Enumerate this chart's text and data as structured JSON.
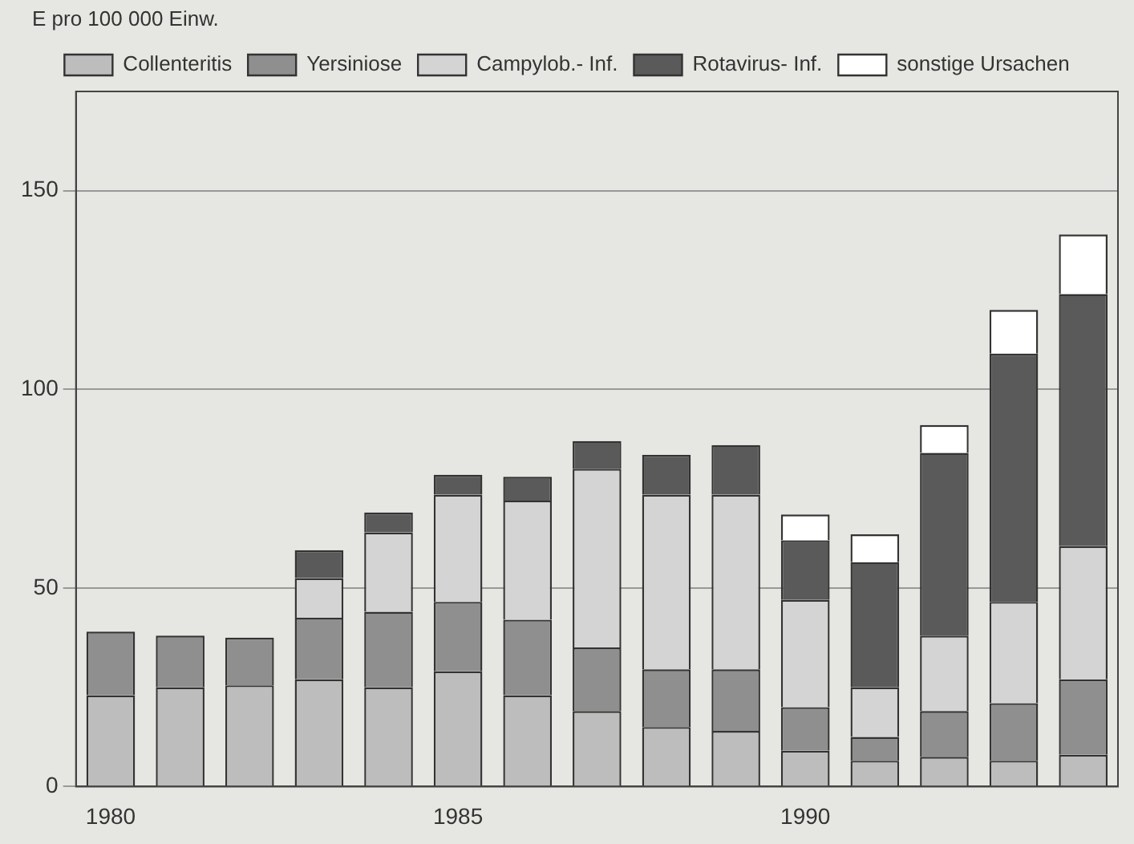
{
  "chart_data": {
    "type": "bar",
    "stacked": true,
    "ylabel": "E pro 100 000 Einw.",
    "categories": [
      "1980",
      null,
      null,
      null,
      null,
      "1985",
      null,
      null,
      null,
      null,
      "1990",
      null,
      null,
      null,
      null
    ],
    "series": [
      {
        "name": "Collenteritis",
        "color": "#bdbdbd",
        "values": [
          23,
          25,
          25.5,
          27,
          25,
          29,
          23,
          19,
          15,
          14,
          9,
          6.5,
          7.5,
          6.5,
          8
        ]
      },
      {
        "name": "Yersiniose",
        "color": "#8f8f8f",
        "values": [
          16,
          13,
          12,
          15.5,
          19,
          17.5,
          19,
          16,
          14.5,
          15.5,
          11,
          6,
          11.5,
          14.5,
          19
        ]
      },
      {
        "name": "Campylob.- Inf.",
        "color": "#d4d4d4",
        "values": [
          null,
          null,
          null,
          10,
          20,
          27,
          30,
          45,
          44,
          44,
          27,
          12.5,
          19,
          25.5,
          33.5
        ]
      },
      {
        "name": "Rotavirus- Inf.",
        "color": "#5a5a5a",
        "values": [
          null,
          null,
          null,
          7,
          5,
          5,
          6,
          7,
          10,
          12.5,
          15,
          31.5,
          46,
          62.5,
          63.5
        ]
      },
      {
        "name": "sonstige Ursachen",
        "color": "#ffffff",
        "values": [
          null,
          null,
          null,
          null,
          null,
          null,
          null,
          null,
          null,
          null,
          6.5,
          7,
          7,
          11,
          15
        ]
      }
    ],
    "ylim": [
      0,
      175
    ],
    "yticks": [
      0,
      50,
      100,
      150
    ],
    "grid": "y",
    "legend": "top"
  }
}
